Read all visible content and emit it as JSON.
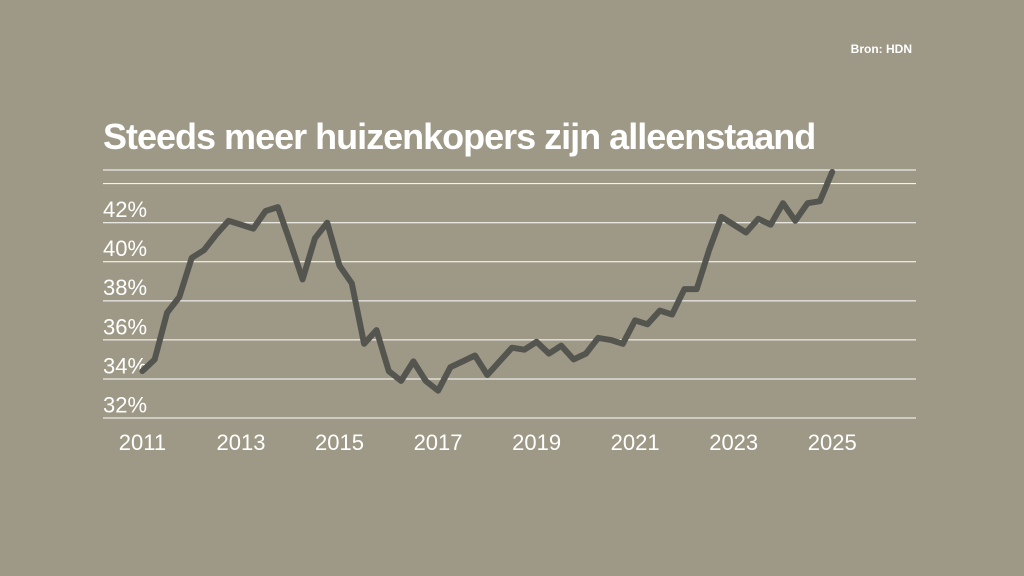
{
  "source": "Bron: HDN",
  "title": "Steeds meer huizenkopers zijn alleenstaand",
  "colors": {
    "background": "#9e9886",
    "grid": "#ffffff",
    "line": "#555550",
    "text": "#ffffff"
  },
  "chart_data": {
    "type": "line",
    "title": "Steeds meer huizenkopers zijn alleenstaand",
    "xlabel": "",
    "ylabel": "",
    "x_ticks": [
      "2011",
      "2013",
      "2015",
      "2017",
      "2019",
      "2021",
      "2023",
      "2025"
    ],
    "y_ticks": [
      "32%",
      "34%",
      "36%",
      "38%",
      "40%",
      "42%"
    ],
    "xlim": [
      2010.2,
      2026.7
    ],
    "ylim": [
      31.2,
      43.9
    ],
    "grid": true,
    "series": [
      {
        "x": [
          2011.0,
          2011.25,
          2011.5,
          2011.75,
          2012.0,
          2012.25,
          2012.5,
          2012.75,
          2013.0,
          2013.25,
          2013.5,
          2013.75,
          2014.0,
          2014.25,
          2014.5,
          2014.75,
          2015.0,
          2015.25,
          2015.5,
          2015.75,
          2016.0,
          2016.25,
          2016.5,
          2016.75,
          2017.0,
          2017.25,
          2017.5,
          2017.75,
          2018.0,
          2018.25,
          2018.5,
          2018.75,
          2019.0,
          2019.25,
          2019.5,
          2019.75,
          2020.0,
          2020.25,
          2020.5,
          2020.75,
          2021.0,
          2021.25,
          2021.5,
          2021.75,
          2022.0,
          2022.25,
          2022.5,
          2022.75,
          2023.0,
          2023.25,
          2023.5,
          2023.75,
          2024.0,
          2024.25,
          2024.5,
          2024.75,
          2025.0
        ],
        "values": [
          33.6,
          34.2,
          36.6,
          37.4,
          39.4,
          39.8,
          40.6,
          41.3,
          41.1,
          40.9,
          41.8,
          42.0,
          40.2,
          38.3,
          40.4,
          41.2,
          39.0,
          38.1,
          35.0,
          35.7,
          33.6,
          33.1,
          34.1,
          33.1,
          32.6,
          33.8,
          34.1,
          34.4,
          33.4,
          34.1,
          34.8,
          34.7,
          35.1,
          34.5,
          34.9,
          34.2,
          34.5,
          35.3,
          35.2,
          35.0,
          36.2,
          36.0,
          36.7,
          36.5,
          37.8,
          37.8,
          39.8,
          41.5,
          41.1,
          40.7,
          41.4,
          41.1,
          42.2,
          41.3,
          42.2,
          42.3,
          43.8
        ]
      }
    ]
  }
}
